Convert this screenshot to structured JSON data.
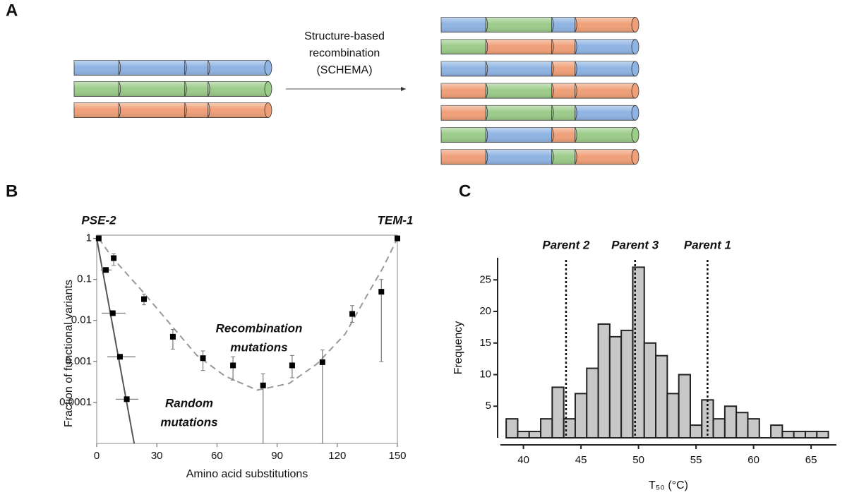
{
  "diagram": {
    "panel_label": "A",
    "arrow_label": [
      "Structure-based",
      "recombination",
      "(SCHEMA)"
    ]
  },
  "chart_data": [
    {
      "type": "scatter",
      "panel_label": "B",
      "xlabel": "Amino acid substitutions",
      "ylabel": "Fraction of functional variants",
      "xlim": [
        0,
        150
      ],
      "xticks": [
        0,
        30,
        60,
        90,
        120,
        150
      ],
      "ylog": true,
      "ylim": [
        1e-05,
        1.2
      ],
      "yticks": [
        1,
        0.1,
        0.01,
        0.001,
        0.0001
      ],
      "series": [
        {
          "color": "#000000",
          "x": [
            1,
            8.5,
            23.6,
            38,
            53,
            68,
            83,
            97.5,
            112.6,
            127.5,
            142,
            150
          ],
          "values": [
            1,
            0.33,
            0.033,
            0.004,
            0.0012,
            0.0008,
            0.00026,
            0.0008,
            0.00096,
            0.0144,
            0.05,
            1
          ],
          "y_lower": [
            null,
            0.22,
            0.024,
            0.002,
            0.0006,
            0.00035,
            1e-05,
            0.0004,
            1e-05,
            0.009,
            0.001,
            null
          ],
          "y_upper": [
            null,
            0.42,
            0.044,
            0.006,
            0.0018,
            0.0013,
            0.0005,
            0.0014,
            0.0019,
            0.023,
            0.1,
            null
          ]
        },
        {
          "color": "#000000",
          "x": [
            4.6,
            8,
            11.6,
            15
          ],
          "values": [
            0.17,
            0.015,
            0.0013,
            0.00012
          ],
          "x_lower": [
            2.1,
            2.5,
            5.3,
            9.5
          ],
          "x_upper": [
            7.4,
            14.4,
            19.4,
            20.8
          ]
        }
      ],
      "lines": [
        {
          "color": "#999999",
          "dashed": true,
          "x": [
            1,
            8,
            22,
            37,
            50,
            64,
            80,
            96,
            110,
            124,
            135,
            143,
            150
          ],
          "values": [
            1,
            0.33,
            0.057,
            0.0078,
            0.0014,
            0.00044,
            0.0002,
            0.00029,
            0.00088,
            0.0047,
            0.042,
            0.2,
            1
          ]
        },
        {
          "color": "#555555",
          "dashed": false,
          "x": [
            0,
            18.7
          ],
          "values": [
            1,
            1e-05
          ]
        }
      ],
      "annotations": [
        {
          "lines": [
            "PSE-2"
          ]
        },
        {
          "lines": [
            "TEM-1"
          ]
        },
        {
          "lines": [
            "Recombination",
            "mutations"
          ]
        },
        {
          "lines": [
            "Random",
            "mutations"
          ]
        }
      ]
    },
    {
      "type": "histogram",
      "panel_label": "C",
      "xlabel": "T₅₀ (°C)",
      "ylabel": "Frequency",
      "color": "#c8c8c8",
      "bins": [
        38.5,
        39.5,
        40.5,
        41.5,
        42.5,
        43.5,
        44.5,
        45.5,
        46.5,
        47.5,
        48.5,
        49.5,
        50.5,
        51.5,
        52.5,
        53.5,
        54.5,
        55.5,
        56.5,
        57.5,
        58.5,
        59.5,
        60.5,
        61.5,
        62.5,
        63.5,
        64.5,
        65.5,
        66.5
      ],
      "values": [
        3,
        1,
        1,
        3,
        8,
        3,
        7,
        11,
        18,
        16,
        17,
        27,
        15,
        13,
        7,
        10,
        2,
        6,
        3,
        5,
        4,
        3,
        0,
        2,
        1,
        1,
        1,
        1
      ],
      "xlim": [
        38,
        67.2
      ],
      "xticks": [
        40,
        45,
        50,
        55,
        60,
        65
      ],
      "ylim": [
        0,
        28.5
      ],
      "yticks": [
        5,
        10,
        15,
        20,
        25
      ],
      "reference_lines": [
        {
          "x": 43.7,
          "label": "Parent 2"
        },
        {
          "x": 49.7,
          "label": "Parent 3"
        },
        {
          "x": 56,
          "label": "Parent 1"
        }
      ]
    }
  ]
}
